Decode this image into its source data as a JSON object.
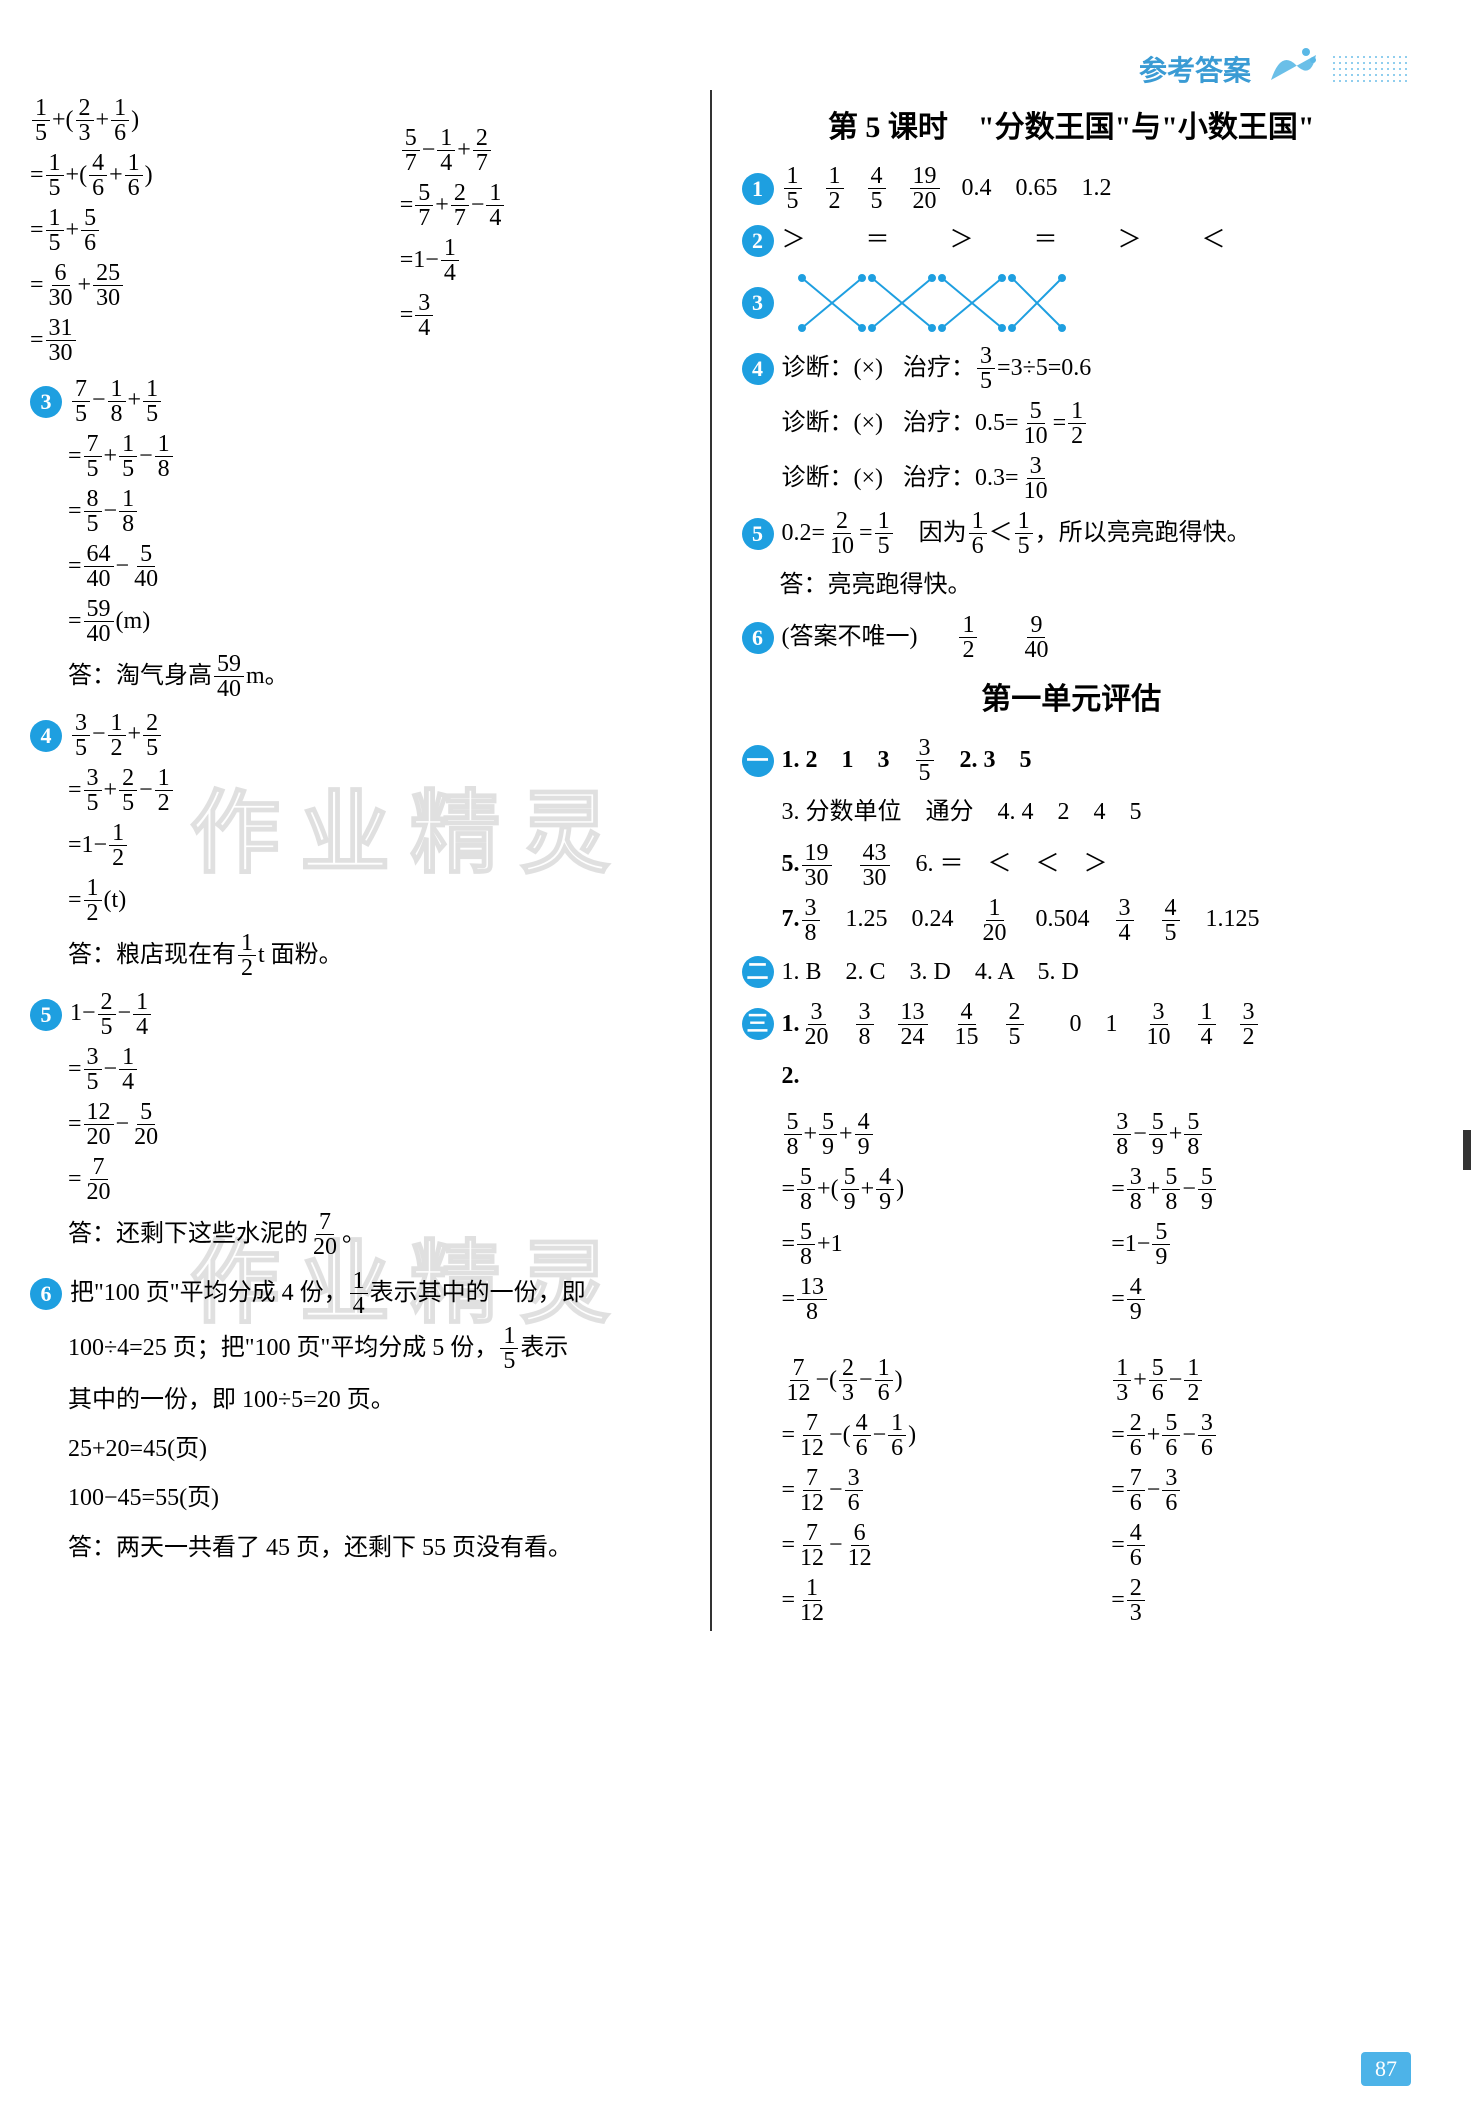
{
  "header": {
    "title": "参考答案"
  },
  "page_number": "87",
  "watermark": "作业精灵",
  "left": {
    "eq_pair_top": {
      "colA": [
        {
          "pre": "",
          "parts": [
            "1",
            "5",
            "+(",
            "2",
            "3",
            "+",
            "1",
            "6",
            ")"
          ]
        },
        {
          "pre": "=",
          "parts": [
            "1",
            "5",
            "+(",
            "4",
            "6",
            "+",
            "1",
            "6",
            ")"
          ]
        },
        {
          "pre": "=",
          "parts": [
            "1",
            "5",
            "+",
            "5",
            "6"
          ]
        },
        {
          "pre": "=",
          "parts": [
            "6",
            "30",
            "+",
            "25",
            "30"
          ]
        },
        {
          "pre": "=",
          "parts": [
            "31",
            "30"
          ]
        }
      ],
      "colB": [
        {
          "pre": "",
          "parts": [
            "5",
            "7",
            "−",
            "1",
            "4",
            "+",
            "2",
            "7"
          ]
        },
        {
          "pre": "=",
          "parts": [
            "5",
            "7",
            "+",
            "2",
            "7",
            "−",
            "1",
            "4"
          ]
        },
        {
          "pre": "=",
          "plain": "1−",
          "parts": [
            "1",
            "4"
          ]
        },
        {
          "pre": "=",
          "parts": [
            "3",
            "4"
          ]
        }
      ]
    },
    "q3": {
      "badge": "3",
      "lines": [
        {
          "pre": "",
          "parts": [
            "7",
            "5",
            "−",
            "1",
            "8",
            "+",
            "1",
            "5"
          ]
        },
        {
          "pre": "=",
          "parts": [
            "7",
            "5",
            "+",
            "1",
            "5",
            "−",
            "1",
            "8"
          ]
        },
        {
          "pre": "=",
          "parts": [
            "8",
            "5",
            "−",
            "1",
            "8"
          ]
        },
        {
          "pre": "=",
          "parts": [
            "64",
            "40",
            "−",
            "5",
            "40"
          ]
        },
        {
          "pre": "=",
          "parts": [
            "59",
            "40"
          ],
          "suffix": "(m)"
        }
      ],
      "answer_pre": "答：淘气身高",
      "answer_frac": [
        "59",
        "40"
      ],
      "answer_post": " m。"
    },
    "q4": {
      "badge": "4",
      "lines": [
        {
          "pre": "",
          "parts": [
            "3",
            "5",
            "−",
            "1",
            "2",
            "+",
            "2",
            "5"
          ]
        },
        {
          "pre": "=",
          "parts": [
            "3",
            "5",
            "+",
            "2",
            "5",
            "−",
            "1",
            "2"
          ]
        },
        {
          "pre": "=",
          "plain": "1−",
          "parts": [
            "1",
            "2"
          ]
        },
        {
          "pre": "=",
          "parts": [
            "1",
            "2"
          ],
          "suffix": "(t)"
        }
      ],
      "answer_pre": "答：粮店现在有",
      "answer_frac": [
        "1",
        "2"
      ],
      "answer_post": " t 面粉。"
    },
    "q5": {
      "badge": "5",
      "lines": [
        {
          "pre": "",
          "plain": "1−",
          "parts": [
            "2",
            "5",
            "−",
            "1",
            "4"
          ]
        },
        {
          "pre": "=",
          "parts": [
            "3",
            "5",
            "−",
            "1",
            "4"
          ]
        },
        {
          "pre": "=",
          "parts": [
            "12",
            "20",
            "−",
            "5",
            "20"
          ]
        },
        {
          "pre": "=",
          "parts": [
            "7",
            "20"
          ]
        }
      ],
      "answer_pre": "答：还剩下这些水泥的",
      "answer_frac": [
        "7",
        "20"
      ],
      "answer_post": "。"
    },
    "q6": {
      "badge": "6",
      "text1_a": "把\"100 页\"平均分成 4 份，",
      "text1_frac": [
        "1",
        "4"
      ],
      "text1_b": "表示其中的一份，即",
      "text2_a": "100÷4=25 页；把\"100 页\"平均分成 5 份，",
      "text2_frac": [
        "1",
        "5"
      ],
      "text2_b": "表示",
      "text3": "其中的一份，即 100÷5=20 页。",
      "text4": "25+20=45(页)",
      "text5": "100−45=55(页)",
      "text6": "答：两天一共看了 45 页，还剩下 55 页没有看。"
    }
  },
  "right": {
    "lesson_title": "第 5 课时　\"分数王国\"与\"小数王国\"",
    "q1": {
      "badge": "1",
      "fracs": [
        [
          "1",
          "5"
        ],
        [
          "1",
          "2"
        ],
        [
          "4",
          "5"
        ],
        [
          "19",
          "20"
        ]
      ],
      "decimals": [
        "0.4",
        "0.65",
        "1.2"
      ]
    },
    "q2": {
      "badge": "2",
      "symbols": [
        "＞",
        "＝",
        "＞",
        "＝",
        "＞",
        "＜"
      ]
    },
    "q3": {
      "badge": "3",
      "cross_color": "#1e9fe0"
    },
    "q4": {
      "badge": "4",
      "rows": [
        {
          "diag": "诊断：(×)",
          "treat_pre": "治疗：",
          "frac": [
            "3",
            "5"
          ],
          "rest": "=3÷5=0.6"
        },
        {
          "diag": "诊断：(×)",
          "treat_pre": "治疗：0.5=",
          "frac": [
            "5",
            "10"
          ],
          "mid": "=",
          "frac2": [
            "1",
            "2"
          ]
        },
        {
          "diag": "诊断：(×)",
          "treat_pre": "治疗：0.3=",
          "frac": [
            "3",
            "10"
          ]
        }
      ]
    },
    "q5": {
      "badge": "5",
      "pre": "0.2=",
      "f1": [
        "2",
        "10"
      ],
      "mid1": "=",
      "f2": [
        "1",
        "5"
      ],
      "because": "　因为",
      "f3": [
        "1",
        "6"
      ],
      "lt": "＜",
      "f4": [
        "1",
        "5"
      ],
      "tail": "，所以亮亮跑得快。",
      "answer": "答：亮亮跑得快。"
    },
    "q6": {
      "badge": "6",
      "text": "(答案不唯一)",
      "f1": [
        "1",
        "2"
      ],
      "f2": [
        "9",
        "40"
      ]
    },
    "unit_title": "第一单元评估",
    "sec1": {
      "badge": "一",
      "l1_a": "1. 2　1　3　",
      "l1_frac": [
        "3",
        "5"
      ],
      "l1_b": "　2. 3　5",
      "l3": "3. 分数单位　通分　4. 4　2　4　5",
      "l5_a": "5. ",
      "l5_f1": [
        "19",
        "30"
      ],
      "l5_gap": "　",
      "l5_f2": [
        "43",
        "30"
      ],
      "l5_b": "　6. ＝　＜　＜　＞",
      "l7_a": "7. ",
      "l7_f1": [
        "3",
        "8"
      ],
      "l7_mid1": "　1.25　0.24　",
      "l7_f2": [
        "1",
        "20"
      ],
      "l7_mid2": "　0.504　",
      "l7_f3": [
        "3",
        "4"
      ],
      "l7_gap": "　",
      "l7_f4": [
        "4",
        "5"
      ],
      "l7_end": "　1.125"
    },
    "sec2": {
      "badge": "二",
      "text": "1. B　2. C　3. D　4. A　5. D"
    },
    "sec3": {
      "badge": "三",
      "row1_pre": "1. ",
      "row1_fracs": [
        [
          "3",
          "20"
        ],
        [
          "3",
          "8"
        ],
        [
          "13",
          "24"
        ],
        [
          "4",
          "15"
        ],
        [
          "2",
          "5"
        ]
      ],
      "row1_mid": "　0　1　",
      "row1_fracs2": [
        [
          "3",
          "10"
        ],
        [
          "1",
          "4"
        ],
        [
          "3",
          "2"
        ]
      ],
      "row2_label": "2.",
      "pairA": {
        "left": [
          {
            "pre": "",
            "parts": [
              "5",
              "8",
              "+",
              "5",
              "9",
              "+",
              "4",
              "9"
            ]
          },
          {
            "pre": "=",
            "parts": [
              "5",
              "8",
              "+(",
              "5",
              "9",
              "+",
              "4",
              "9",
              ")"
            ]
          },
          {
            "pre": "=",
            "parts": [
              "5",
              "8"
            ],
            "suffix": "+1"
          },
          {
            "pre": "=",
            "parts": [
              "13",
              "8"
            ]
          }
        ],
        "right": [
          {
            "pre": "",
            "parts": [
              "3",
              "8",
              "−",
              "5",
              "9",
              "+",
              "5",
              "8"
            ]
          },
          {
            "pre": "=",
            "parts": [
              "3",
              "8",
              "+",
              "5",
              "8",
              "−",
              "5",
              "9"
            ]
          },
          {
            "pre": "=",
            "plain": "1−",
            "parts": [
              "5",
              "9"
            ]
          },
          {
            "pre": "=",
            "parts": [
              "4",
              "9"
            ]
          }
        ]
      },
      "pairB": {
        "left": [
          {
            "pre": "",
            "parts": [
              "7",
              "12",
              "−(",
              "2",
              "3",
              "−",
              "1",
              "6",
              ")"
            ]
          },
          {
            "pre": "=",
            "parts": [
              "7",
              "12",
              "−(",
              "4",
              "6",
              "−",
              "1",
              "6",
              ")"
            ]
          },
          {
            "pre": "=",
            "parts": [
              "7",
              "12",
              "−",
              "3",
              "6"
            ]
          },
          {
            "pre": "=",
            "parts": [
              "7",
              "12",
              "−",
              "6",
              "12"
            ]
          },
          {
            "pre": "=",
            "parts": [
              "1",
              "12"
            ]
          }
        ],
        "right": [
          {
            "pre": "",
            "parts": [
              "1",
              "3",
              "+",
              "5",
              "6",
              "−",
              "1",
              "2"
            ]
          },
          {
            "pre": "=",
            "parts": [
              "2",
              "6",
              "+",
              "5",
              "6",
              "−",
              "3",
              "6"
            ]
          },
          {
            "pre": "=",
            "parts": [
              "7",
              "6",
              "−",
              "3",
              "6"
            ]
          },
          {
            "pre": "=",
            "parts": [
              "4",
              "6"
            ]
          },
          {
            "pre": "=",
            "parts": [
              "2",
              "3"
            ]
          }
        ]
      }
    }
  }
}
